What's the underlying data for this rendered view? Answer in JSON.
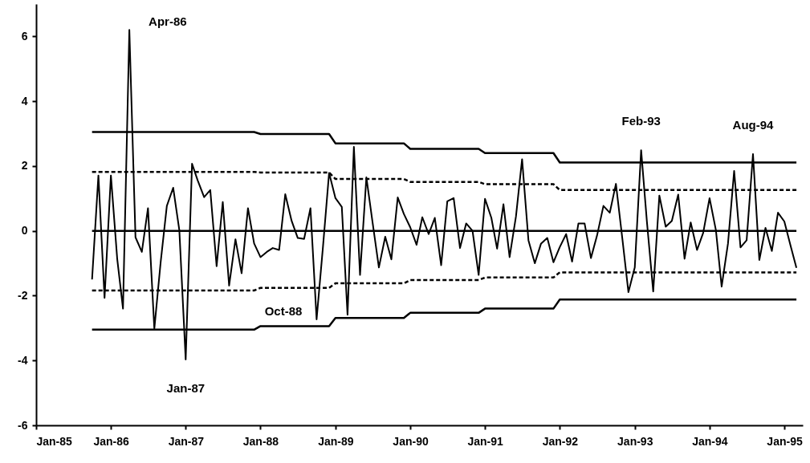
{
  "chart_data": {
    "type": "line",
    "x": [
      "1985-10",
      "1985-11",
      "1985-12",
      "1986-01",
      "1986-02",
      "1986-03",
      "1986-04",
      "1986-05",
      "1986-06",
      "1986-07",
      "1986-08",
      "1986-09",
      "1986-10",
      "1986-11",
      "1986-12",
      "1987-01",
      "1987-02",
      "1987-03",
      "1987-04",
      "1987-05",
      "1987-06",
      "1987-07",
      "1987-08",
      "1987-09",
      "1987-10",
      "1987-11",
      "1987-12",
      "1988-01",
      "1988-02",
      "1988-03",
      "1988-04",
      "1988-05",
      "1988-06",
      "1988-07",
      "1988-08",
      "1988-09",
      "1988-10",
      "1988-11",
      "1988-12",
      "1989-01",
      "1989-02",
      "1989-03",
      "1989-04",
      "1989-05",
      "1989-06",
      "1989-07",
      "1989-08",
      "1989-09",
      "1989-10",
      "1989-11",
      "1989-12",
      "1990-01",
      "1990-02",
      "1990-03",
      "1990-04",
      "1990-05",
      "1990-06",
      "1990-07",
      "1990-08",
      "1990-09",
      "1990-10",
      "1990-11",
      "1990-12",
      "1991-01",
      "1991-02",
      "1991-03",
      "1991-04",
      "1991-05",
      "1991-06",
      "1991-07",
      "1991-08",
      "1991-09",
      "1991-10",
      "1991-11",
      "1991-12",
      "1992-01",
      "1992-02",
      "1992-03",
      "1992-04",
      "1992-05",
      "1992-06",
      "1992-07",
      "1992-08",
      "1992-09",
      "1992-10",
      "1992-11",
      "1992-12",
      "1993-01",
      "1993-02",
      "1993-03",
      "1993-04",
      "1993-05",
      "1993-06",
      "1993-07",
      "1993-08",
      "1993-09",
      "1993-10",
      "1993-11",
      "1993-12",
      "1994-01",
      "1994-02",
      "1994-03",
      "1994-04",
      "1994-05",
      "1994-06",
      "1994-07",
      "1994-08",
      "1994-09",
      "1994-10",
      "1994-11",
      "1994-12",
      "1995-01",
      "1995-02",
      "1995-03"
    ],
    "series": [
      {
        "color": "#000000",
        "line_style": "solid",
        "values": [
          -1.5,
          1.71,
          -2.07,
          1.71,
          -0.88,
          -2.4,
          6.2,
          -0.2,
          -0.65,
          0.7,
          -3.02,
          -0.96,
          0.77,
          1.33,
          0.02,
          -3.97,
          2.07,
          1.55,
          1.04,
          1.26,
          -1.09,
          0.89,
          -1.69,
          -0.26,
          -1.31,
          0.7,
          -0.39,
          -0.81,
          -0.65,
          -0.53,
          -0.59,
          1.13,
          0.31,
          -0.22,
          -0.25,
          0.7,
          -2.73,
          -0.5,
          1.79,
          1.01,
          0.74,
          -2.59,
          2.59,
          -1.36,
          1.65,
          0.27,
          -1.13,
          -0.18,
          -0.88,
          1.03,
          0.52,
          0.11,
          -0.43,
          0.42,
          -0.1,
          0.4,
          -1.06,
          0.91,
          1.01,
          -0.53,
          0.23,
          0.0,
          -1.36,
          0.99,
          0.4,
          -0.55,
          0.82,
          -0.81,
          0.44,
          2.21,
          -0.29,
          -1.0,
          -0.4,
          -0.22,
          -0.97,
          -0.5,
          -0.1,
          -0.95,
          0.23,
          0.23,
          -0.84,
          -0.14,
          0.77,
          0.56,
          1.45,
          -0.22,
          -1.89,
          -1.13,
          2.49,
          0.3,
          -1.87,
          1.09,
          0.13,
          0.31,
          1.12,
          -0.86,
          0.26,
          -0.59,
          -0.06,
          1.01,
          0.02,
          -1.72,
          -0.39,
          1.85,
          -0.51,
          -0.29,
          2.37,
          -0.9,
          0.09,
          -0.62,
          0.56,
          0.29,
          -0.47,
          -1.14
        ]
      },
      {
        "color": "#000000",
        "line_style": "solid",
        "x": [
          "1985-10",
          "1995-03"
        ],
        "values": [
          0,
          0
        ]
      },
      {
        "color": "#000000",
        "line_style": "solid",
        "x": [
          "1985-10",
          "1987-12",
          "1988-01",
          "1988-12",
          "1989-01",
          "1989-12",
          "1990-01",
          "1990-12",
          "1991-01",
          "1991-12",
          "1992-01",
          "1995-03"
        ],
        "values": [
          3.05,
          3.05,
          2.99,
          2.99,
          2.7,
          2.7,
          2.53,
          2.53,
          2.4,
          2.4,
          2.11,
          2.11
        ]
      },
      {
        "color": "#000000",
        "line_style": "dashed",
        "x": [
          "1985-10",
          "1987-12",
          "1988-01",
          "1988-12",
          "1989-01",
          "1989-12",
          "1990-01",
          "1990-12",
          "1991-01",
          "1991-12",
          "1992-01",
          "1995-03"
        ],
        "values": [
          1.82,
          1.82,
          1.8,
          1.8,
          1.6,
          1.6,
          1.51,
          1.51,
          1.44,
          1.44,
          1.26,
          1.26
        ]
      },
      {
        "color": "#000000",
        "line_style": "dashed",
        "x": [
          "1985-10",
          "1987-12",
          "1988-01",
          "1988-12",
          "1989-01",
          "1989-12",
          "1990-01",
          "1990-12",
          "1991-01",
          "1991-12",
          "1992-01",
          "1995-03"
        ],
        "values": [
          -1.84,
          -1.84,
          -1.76,
          -1.76,
          -1.62,
          -1.62,
          -1.52,
          -1.52,
          -1.44,
          -1.44,
          -1.28,
          -1.28
        ]
      },
      {
        "color": "#000000",
        "line_style": "solid",
        "x": [
          "1985-10",
          "1987-12",
          "1988-01",
          "1988-12",
          "1989-01",
          "1989-12",
          "1990-01",
          "1990-12",
          "1991-01",
          "1991-12",
          "1992-01",
          "1995-03"
        ],
        "values": [
          -3.05,
          -3.05,
          -2.94,
          -2.94,
          -2.69,
          -2.69,
          -2.53,
          -2.53,
          -2.4,
          -2.4,
          -2.12,
          -2.12
        ]
      }
    ],
    "xlim": [
      "1985-01",
      "1995-04"
    ],
    "xticks": [
      {
        "value": "1985-01",
        "label": "Jan-85"
      },
      {
        "value": "1986-01",
        "label": "Jan-86"
      },
      {
        "value": "1987-01",
        "label": "Jan-87"
      },
      {
        "value": "1988-01",
        "label": "Jan-88"
      },
      {
        "value": "1989-01",
        "label": "Jan-89"
      },
      {
        "value": "1990-01",
        "label": "Jan-90"
      },
      {
        "value": "1991-01",
        "label": "Jan-91"
      },
      {
        "value": "1992-01",
        "label": "Jan-92"
      },
      {
        "value": "1993-01",
        "label": "Jan-93"
      },
      {
        "value": "1994-01",
        "label": "Jan-94"
      },
      {
        "value": "1995-01",
        "label": "Jan-95"
      }
    ],
    "ylim": [
      -6,
      7
    ],
    "yticks": [
      -6,
      -4,
      -2,
      0,
      2,
      4,
      6
    ],
    "marker": "none",
    "annotations": [
      {
        "text": "Apr-86",
        "x": "1986-04",
        "y": 6.2
      },
      {
        "text": "Jan-87",
        "x": "1987-01",
        "y": -3.97
      },
      {
        "text": "Oct-88",
        "x": "1988-10",
        "y": -2.73
      },
      {
        "text": "Feb-93",
        "x": "1993-02",
        "y": 2.49
      },
      {
        "text": "Aug-94",
        "x": "1994-08",
        "y": 2.37
      }
    ]
  }
}
